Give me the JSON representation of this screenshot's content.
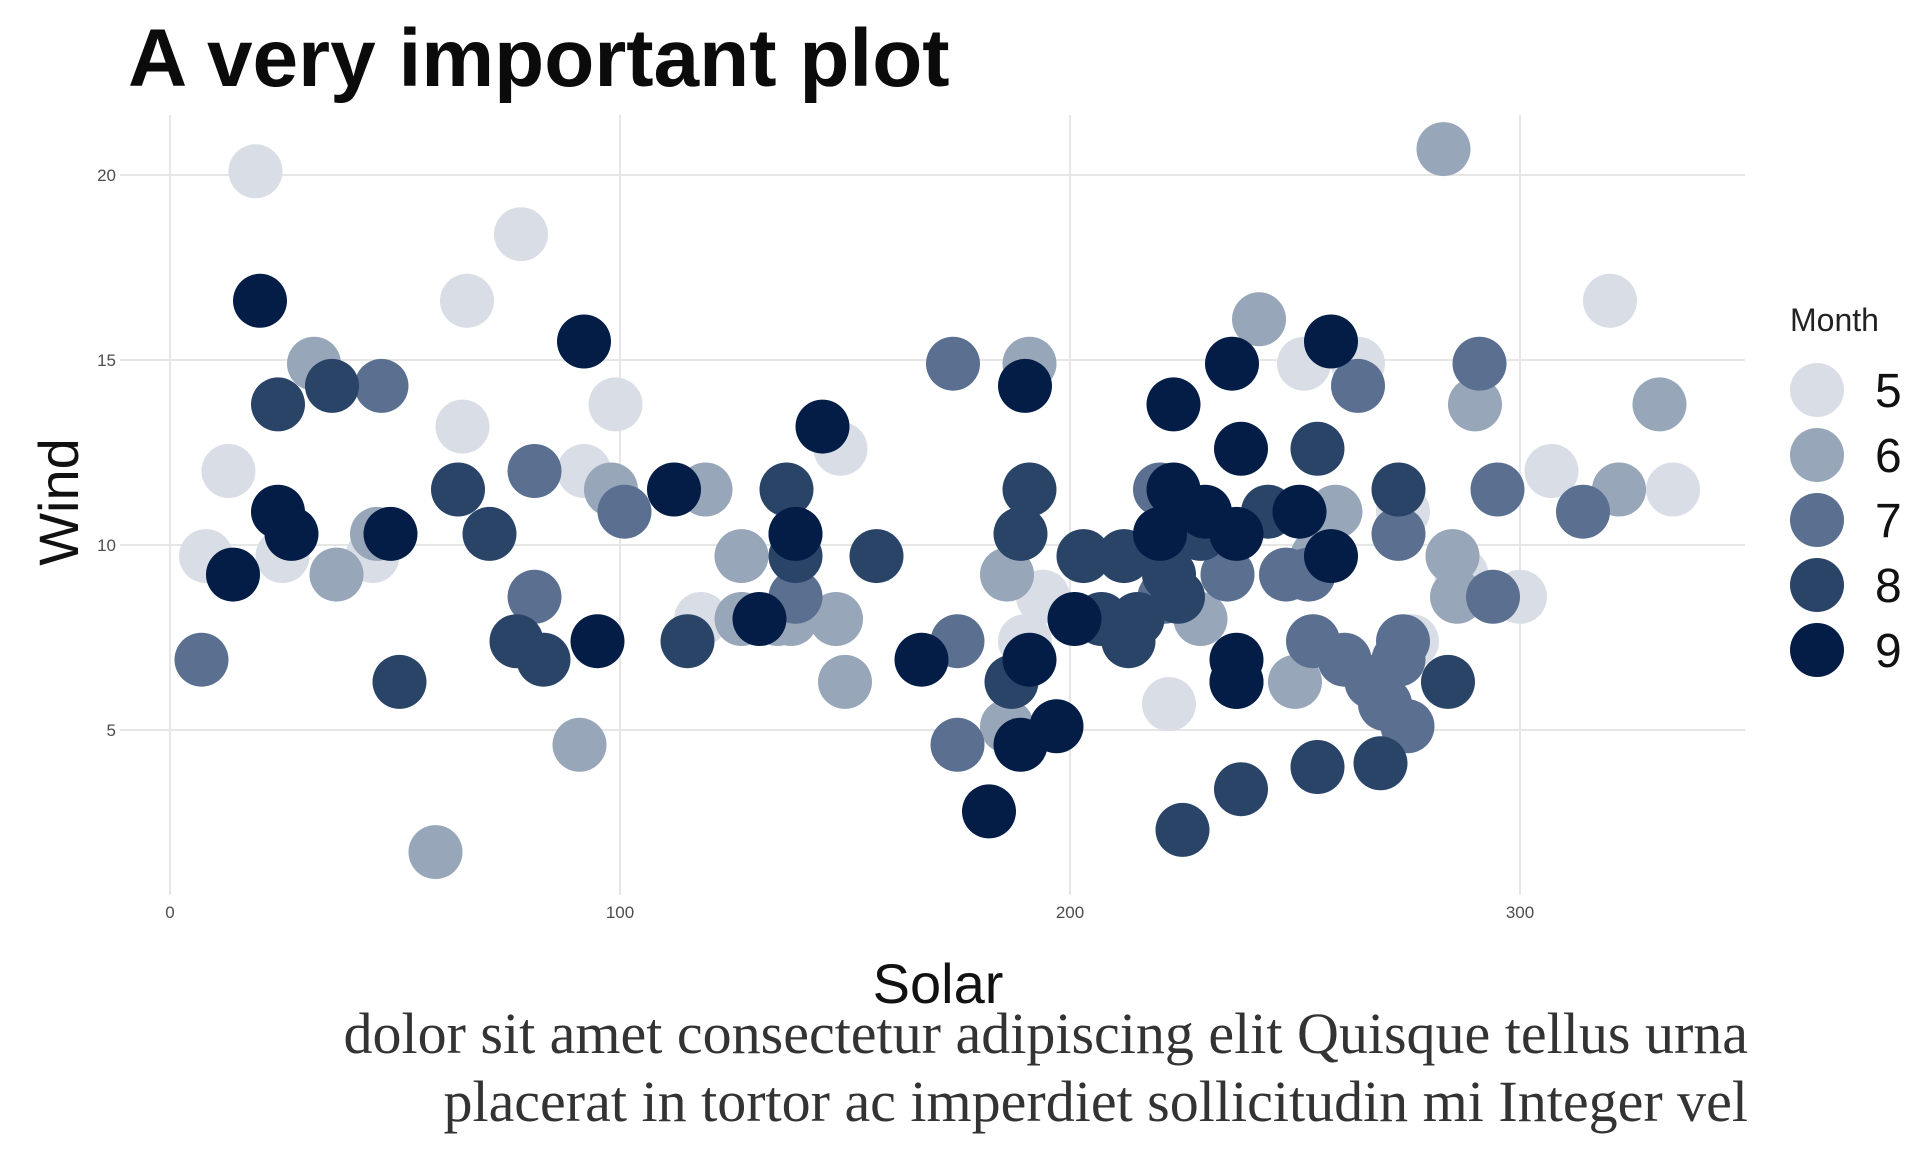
{
  "chart_data": {
    "type": "scatter",
    "title": "A very important plot",
    "xlabel": "Solar",
    "ylabel": "Wind",
    "xlim": [
      -10,
      350
    ],
    "ylim": [
      0.5,
      22
    ],
    "xticks": [
      0,
      100,
      200,
      300
    ],
    "yticks": [
      5,
      10,
      15,
      20
    ],
    "grid": true,
    "legend": {
      "title": "Month",
      "position": "right",
      "entries": [
        "5",
        "6",
        "7",
        "8",
        "9"
      ]
    },
    "colors": {
      "5": "#d9dde5",
      "6": "#97a6b8",
      "7": "#5b7090",
      "8": "#2a4468",
      "9": "#031d47"
    },
    "series": [
      {
        "name": "5",
        "points": [
          [
            8,
            9.7
          ],
          [
            13,
            12.0
          ],
          [
            19,
            20.1
          ],
          [
            25,
            9.7
          ],
          [
            45,
            9.7
          ],
          [
            65,
            13.2
          ],
          [
            66,
            16.6
          ],
          [
            78,
            18.4
          ],
          [
            92,
            12.0
          ],
          [
            99,
            13.8
          ],
          [
            118,
            8.0
          ],
          [
            149,
            12.6
          ],
          [
            194,
            8.6
          ],
          [
            190,
            7.4
          ],
          [
            222,
            5.7
          ],
          [
            252,
            14.9
          ],
          [
            264,
            14.9
          ],
          [
            274,
            10.9
          ],
          [
            276,
            7.4
          ],
          [
            285,
            9.7
          ],
          [
            287,
            9.2
          ],
          [
            300,
            8.6
          ],
          [
            307,
            12.0
          ],
          [
            320,
            16.6
          ],
          [
            322,
            11.5
          ],
          [
            334,
            11.5
          ]
        ]
      },
      {
        "name": "6",
        "points": [
          [
            32,
            14.9
          ],
          [
            37,
            9.2
          ],
          [
            46,
            10.3
          ],
          [
            59,
            1.7
          ],
          [
            91,
            4.6
          ],
          [
            98,
            11.5
          ],
          [
            119,
            11.5
          ],
          [
            127,
            9.7
          ],
          [
            127,
            8.0
          ],
          [
            135,
            8.0
          ],
          [
            138,
            8.0
          ],
          [
            148,
            8.0
          ],
          [
            150,
            6.3
          ],
          [
            186,
            9.2
          ],
          [
            186,
            5.1
          ],
          [
            191,
            14.9
          ],
          [
            229,
            8.0
          ],
          [
            242,
            16.1
          ],
          [
            250,
            6.3
          ],
          [
            255,
            9.7
          ],
          [
            259,
            10.9
          ],
          [
            283,
            20.7
          ],
          [
            285,
            9.7
          ],
          [
            286,
            8.6
          ],
          [
            290,
            13.8
          ],
          [
            322,
            11.5
          ],
          [
            331,
            13.8
          ]
        ]
      },
      {
        "name": "7",
        "points": [
          [
            7,
            6.9
          ],
          [
            47,
            14.3
          ],
          [
            81,
            12.0
          ],
          [
            81,
            8.6
          ],
          [
            101,
            10.9
          ],
          [
            139,
            10.3
          ],
          [
            139,
            8.6
          ],
          [
            174,
            14.9
          ],
          [
            175,
            7.4
          ],
          [
            175,
            4.6
          ],
          [
            220,
            11.5
          ],
          [
            221,
            8.6
          ],
          [
            235,
            9.2
          ],
          [
            248,
            9.2
          ],
          [
            253,
            9.2
          ],
          [
            254,
            7.4
          ],
          [
            261,
            6.9
          ],
          [
            264,
            14.3
          ],
          [
            267,
            6.3
          ],
          [
            270,
            5.7
          ],
          [
            273,
            6.9
          ],
          [
            273,
            10.3
          ],
          [
            274,
            7.4
          ],
          [
            275,
            5.1
          ],
          [
            291,
            14.9
          ],
          [
            294,
            8.6
          ],
          [
            295,
            11.5
          ],
          [
            314,
            10.9
          ]
        ]
      },
      {
        "name": "8",
        "points": [
          [
            24,
            13.8
          ],
          [
            36,
            14.3
          ],
          [
            51,
            6.3
          ],
          [
            64,
            11.5
          ],
          [
            71,
            10.3
          ],
          [
            77,
            7.4
          ],
          [
            83,
            6.9
          ],
          [
            115,
            7.4
          ],
          [
            137,
            11.5
          ],
          [
            139,
            9.7
          ],
          [
            157,
            9.7
          ],
          [
            187,
            6.3
          ],
          [
            189,
            10.3
          ],
          [
            191,
            11.5
          ],
          [
            203,
            9.7
          ],
          [
            207,
            8.0
          ],
          [
            212,
            9.7
          ],
          [
            213,
            7.4
          ],
          [
            215,
            8.0
          ],
          [
            222,
            9.2
          ],
          [
            224,
            8.6
          ],
          [
            225,
            2.3
          ],
          [
            229,
            10.3
          ],
          [
            237,
            6.3
          ],
          [
            238,
            3.4
          ],
          [
            244,
            10.9
          ],
          [
            255,
            4.0
          ],
          [
            255,
            12.6
          ],
          [
            269,
            4.1
          ],
          [
            273,
            11.5
          ],
          [
            284,
            6.3
          ]
        ]
      },
      {
        "name": "9",
        "points": [
          [
            14,
            9.2
          ],
          [
            20,
            16.6
          ],
          [
            24,
            10.9
          ],
          [
            27,
            10.3
          ],
          [
            49,
            10.3
          ],
          [
            92,
            15.5
          ],
          [
            95,
            7.4
          ],
          [
            112,
            11.5
          ],
          [
            131,
            8.0
          ],
          [
            139,
            10.3
          ],
          [
            145,
            13.2
          ],
          [
            167,
            6.9
          ],
          [
            182,
            2.8
          ],
          [
            189,
            4.6
          ],
          [
            190,
            14.3
          ],
          [
            191,
            6.9
          ],
          [
            197,
            5.1
          ],
          [
            201,
            8.0
          ],
          [
            220,
            10.3
          ],
          [
            223,
            11.5
          ],
          [
            223,
            13.8
          ],
          [
            230,
            10.9
          ],
          [
            236,
            14.9
          ],
          [
            237,
            10.3
          ],
          [
            237,
            6.9
          ],
          [
            237,
            6.3
          ],
          [
            238,
            12.6
          ],
          [
            251,
            10.9
          ],
          [
            258,
            15.5
          ],
          [
            258,
            9.7
          ]
        ]
      }
    ]
  },
  "caption": {
    "line1": "dolor sit amet consectetur adipiscing elit Quisque tellus urna",
    "line2": "placerat in tortor ac imperdiet sollicitudin mi Integer vel"
  }
}
